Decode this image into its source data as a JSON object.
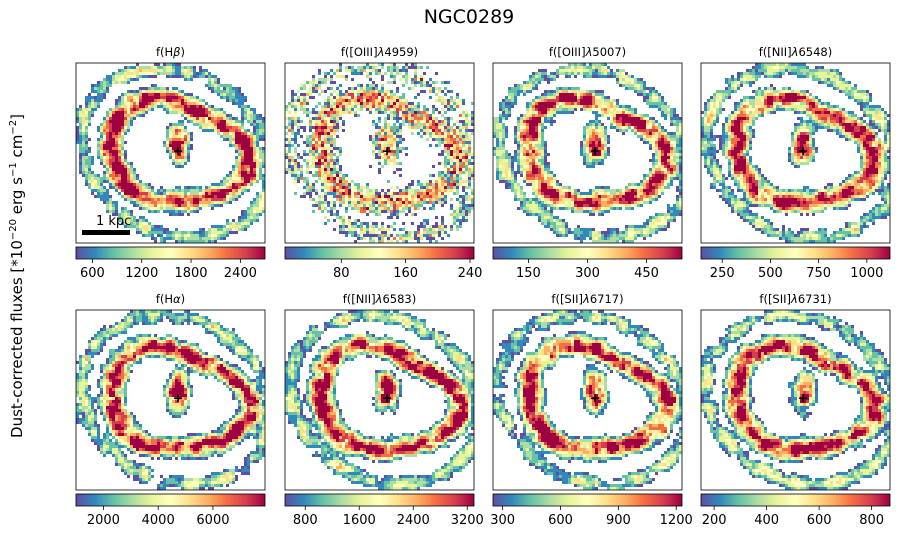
{
  "figure": {
    "title": "NGC0289",
    "ylabel_main": "Dust-corrected fluxes [*10",
    "ylabel_exp1": "−20",
    "ylabel_mid": " erg s",
    "ylabel_exp2": "−1",
    "ylabel_mid2": " cm",
    "ylabel_exp3": "−2",
    "ylabel_end": "]",
    "scalebar_label": "1 kpc",
    "colormap": [
      "#5e4fa2",
      "#3288bd",
      "#66c2a5",
      "#abdda4",
      "#e6f598",
      "#ffffbf",
      "#fee08b",
      "#fdae61",
      "#f46d43",
      "#d53e4f",
      "#9e0142"
    ]
  },
  "chart_data": [
    {
      "type": "heatmap",
      "title_prefix": "f(H",
      "title_greek": "β",
      "title_suffix": ")",
      "colorbar_range": [
        400,
        2700
      ],
      "colorbar_ticks": [
        600,
        1200,
        1800,
        2400
      ]
    },
    {
      "type": "heatmap",
      "title_prefix": "f([OIII]",
      "title_greek": "λ",
      "title_suffix": "4959)",
      "colorbar_range": [
        10,
        245
      ],
      "colorbar_ticks": [
        80,
        160,
        240
      ]
    },
    {
      "type": "heatmap",
      "title_prefix": "f([OIII]",
      "title_greek": "λ",
      "title_suffix": "5007)",
      "colorbar_range": [
        60,
        540
      ],
      "colorbar_ticks": [
        150,
        300,
        450
      ]
    },
    {
      "type": "heatmap",
      "title_prefix": "f([NII]",
      "title_greek": "λ",
      "title_suffix": "6548)",
      "colorbar_range": [
        140,
        1120
      ],
      "colorbar_ticks": [
        250,
        500,
        750,
        1000
      ]
    },
    {
      "type": "heatmap",
      "title_prefix": "f(H",
      "title_greek": "α",
      "title_suffix": ")",
      "colorbar_range": [
        1000,
        7900
      ],
      "colorbar_ticks": [
        2000,
        4000,
        6000
      ]
    },
    {
      "type": "heatmap",
      "title_prefix": "f([NII]",
      "title_greek": "λ",
      "title_suffix": "6583)",
      "colorbar_range": [
        500,
        3300
      ],
      "colorbar_ticks": [
        800,
        1600,
        2400,
        3200
      ]
    },
    {
      "type": "heatmap",
      "title_prefix": "f([SII]",
      "title_greek": "λ",
      "title_suffix": "6717)",
      "colorbar_range": [
        250,
        1230
      ],
      "colorbar_ticks": [
        300,
        600,
        900,
        1200
      ]
    },
    {
      "type": "heatmap",
      "title_prefix": "f([SII]",
      "title_greek": "λ",
      "title_suffix": "6731)",
      "colorbar_range": [
        150,
        870
      ],
      "colorbar_ticks": [
        200,
        400,
        600,
        800
      ]
    }
  ]
}
